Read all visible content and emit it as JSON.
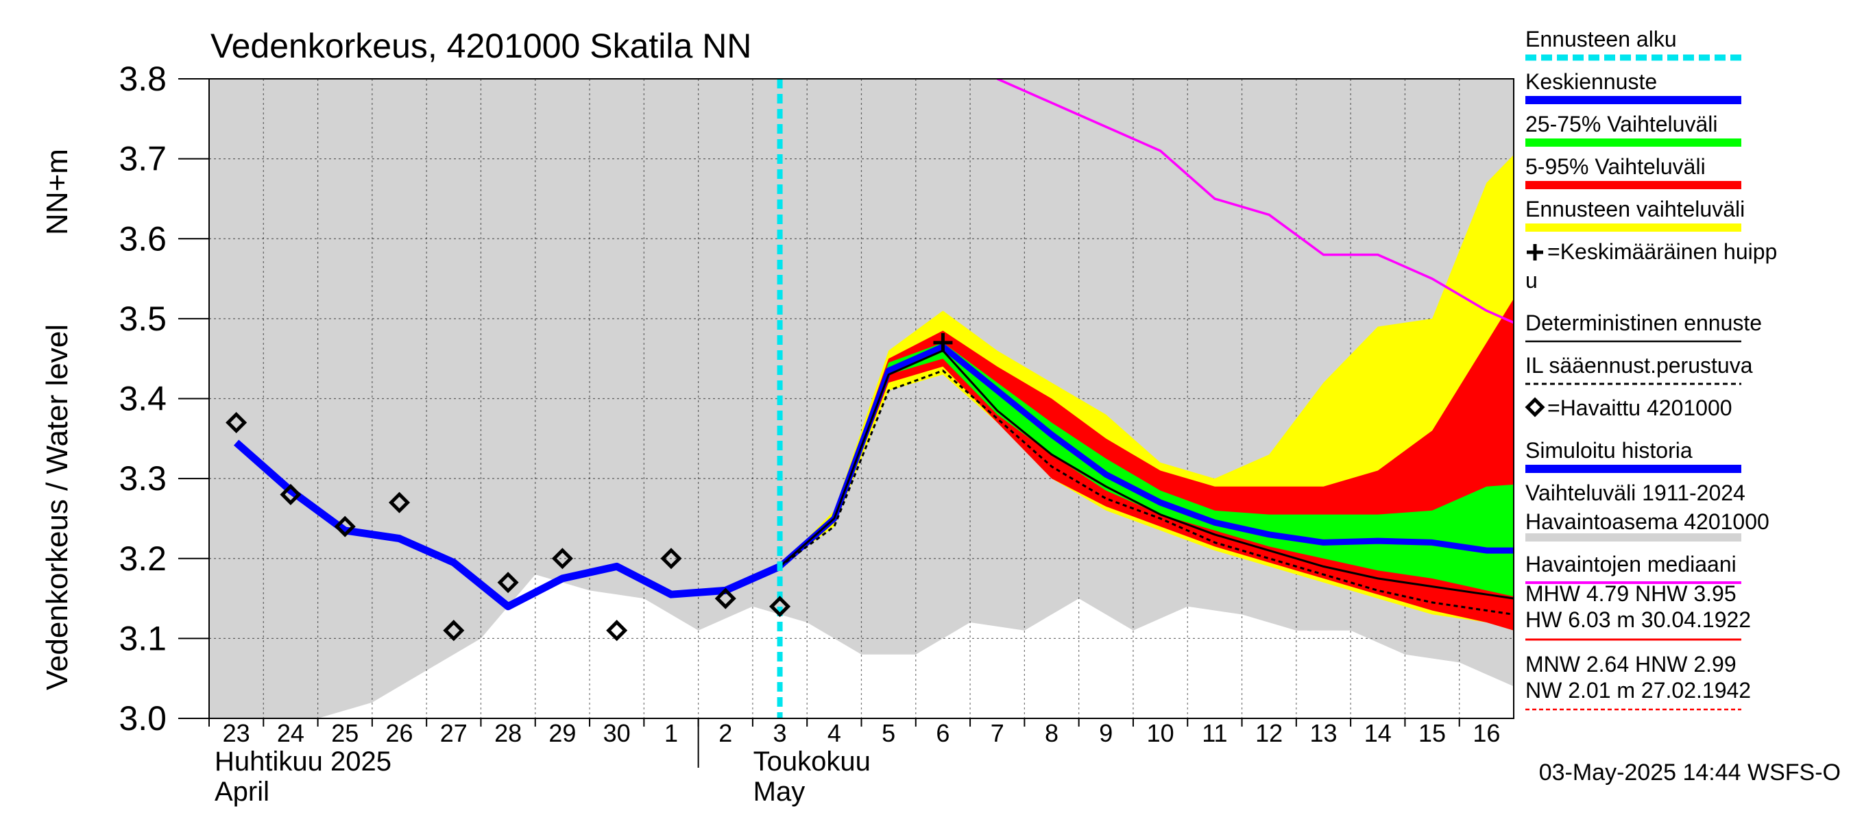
{
  "chart_data": {
    "type": "area",
    "title": "Vedenkorkeus, 4201000 Skatila NN",
    "ylabel": "Vedenkorkeus / Water level",
    "yunit": "NN+m",
    "ylim": [
      3.0,
      3.8
    ],
    "yticks": [
      "3.0",
      "3.1",
      "3.2",
      "3.3",
      "3.4",
      "3.5",
      "3.6",
      "3.7",
      "3.8"
    ],
    "x_start": "2025-04-23",
    "x_end": "2025-05-17",
    "xticks": [
      "23",
      "24",
      "25",
      "26",
      "27",
      "28",
      "29",
      "30",
      "1",
      "2",
      "3",
      "4",
      "5",
      "6",
      "7",
      "8",
      "9",
      "10",
      "11",
      "12",
      "13",
      "14",
      "15",
      "16"
    ],
    "month_labels": [
      {
        "fi": "Huhtikuu  2025",
        "en": "April",
        "start": "2025-04-23"
      },
      {
        "fi": "Toukokuu",
        "en": "May",
        "start": "2025-05-02"
      }
    ],
    "grid": true,
    "forecast_start": "2025-05-03",
    "history_range": {
      "x": [
        "2025-04-23",
        "2025-04-24",
        "2025-04-25",
        "2025-04-26",
        "2025-04-27",
        "2025-04-28",
        "2025-04-29",
        "2025-04-30",
        "2025-05-01",
        "2025-05-02",
        "2025-05-03",
        "2025-05-04",
        "2025-05-05",
        "2025-05-06",
        "2025-05-07",
        "2025-05-08",
        "2025-05-09",
        "2025-05-10",
        "2025-05-11",
        "2025-05-12",
        "2025-05-13",
        "2025-05-14",
        "2025-05-15",
        "2025-05-16",
        "2025-05-17"
      ],
      "low": [
        3.0,
        3.0,
        3.0,
        3.02,
        3.06,
        3.1,
        3.18,
        3.16,
        3.15,
        3.11,
        3.14,
        3.12,
        3.08,
        3.08,
        3.12,
        3.11,
        3.15,
        3.11,
        3.14,
        3.13,
        3.11,
        3.11,
        3.08,
        3.07,
        3.04
      ],
      "high": [
        3.8,
        3.8,
        3.8,
        3.8,
        3.8,
        3.8,
        3.8,
        3.8,
        3.8,
        3.8,
        3.8,
        3.8,
        3.8,
        3.8,
        3.8,
        3.8,
        3.8,
        3.8,
        3.8,
        3.8,
        3.8,
        3.8,
        3.8,
        3.8,
        3.8
      ]
    },
    "forecast_x": [
      "2025-05-03",
      "2025-05-04",
      "2025-05-05",
      "2025-05-06",
      "2025-05-07",
      "2025-05-08",
      "2025-05-09",
      "2025-05-10",
      "2025-05-11",
      "2025-05-12",
      "2025-05-13",
      "2025-05-14",
      "2025-05-15",
      "2025-05-16",
      "2025-05-17"
    ],
    "forecast_range": {
      "low": [
        3.19,
        3.24,
        3.41,
        3.43,
        3.37,
        3.3,
        3.26,
        3.235,
        3.21,
        3.19,
        3.17,
        3.15,
        3.13,
        3.12,
        3.1
      ],
      "high": [
        3.19,
        3.26,
        3.46,
        3.51,
        3.46,
        3.42,
        3.38,
        3.32,
        3.3,
        3.33,
        3.42,
        3.49,
        3.5,
        3.67,
        3.74
      ]
    },
    "band_5_95": {
      "low": [
        3.19,
        3.245,
        3.42,
        3.44,
        3.37,
        3.3,
        3.265,
        3.24,
        3.215,
        3.195,
        3.175,
        3.155,
        3.135,
        3.12,
        3.1
      ],
      "high": [
        3.19,
        3.255,
        3.45,
        3.485,
        3.44,
        3.4,
        3.35,
        3.31,
        3.29,
        3.29,
        3.29,
        3.31,
        3.36,
        3.47,
        3.58
      ]
    },
    "band_25_75": {
      "low": [
        3.19,
        3.248,
        3.43,
        3.45,
        3.38,
        3.33,
        3.285,
        3.255,
        3.235,
        3.215,
        3.2,
        3.185,
        3.175,
        3.16,
        3.145
      ],
      "high": [
        3.19,
        3.252,
        3.445,
        3.47,
        3.42,
        3.37,
        3.325,
        3.285,
        3.26,
        3.255,
        3.255,
        3.255,
        3.26,
        3.29,
        3.295
      ]
    },
    "series": [
      {
        "name": "Keskiennuste",
        "x_ref": "forecast_x",
        "values": [
          3.19,
          3.25,
          3.435,
          3.465,
          3.41,
          3.355,
          3.305,
          3.27,
          3.245,
          3.23,
          3.22,
          3.222,
          3.22,
          3.21,
          3.21
        ],
        "color": "#0000ff"
      },
      {
        "name": "Deterministinen ennuste",
        "x_ref": "forecast_x",
        "values": [
          3.19,
          3.25,
          3.43,
          3.46,
          3.385,
          3.33,
          3.29,
          3.255,
          3.23,
          3.21,
          3.19,
          3.175,
          3.165,
          3.155,
          3.145
        ],
        "color": "#000000"
      },
      {
        "name": "IL sääennust.perustuva",
        "x_ref": "forecast_x",
        "values": [
          3.19,
          3.24,
          3.41,
          3.435,
          3.375,
          3.315,
          3.275,
          3.25,
          3.22,
          3.2,
          3.18,
          3.16,
          3.145,
          3.135,
          3.125
        ],
        "color": "#000000",
        "dashed": true
      },
      {
        "name": "Simuloitu historia",
        "x": [
          "2025-04-23",
          "2025-04-24",
          "2025-04-25",
          "2025-04-26",
          "2025-04-27",
          "2025-04-28",
          "2025-04-29",
          "2025-04-30",
          "2025-05-01",
          "2025-05-02",
          "2025-05-03"
        ],
        "values": [
          3.345,
          3.285,
          3.235,
          3.225,
          3.195,
          3.14,
          3.175,
          3.19,
          3.155,
          3.16,
          3.19
        ],
        "color": "#0000ff"
      },
      {
        "name": "Havaintojen mediaani",
        "x": [
          "2025-05-07",
          "2025-05-08",
          "2025-05-09",
          "2025-05-10",
          "2025-05-11",
          "2025-05-12",
          "2025-05-13",
          "2025-05-14",
          "2025-05-15",
          "2025-05-16",
          "2025-05-17"
        ],
        "values": [
          3.8,
          3.77,
          3.74,
          3.71,
          3.65,
          3.63,
          3.58,
          3.58,
          3.55,
          3.51,
          3.48
        ],
        "color": "#ff00ff"
      }
    ],
    "observed": {
      "name": "Havaittu 4201000",
      "x": [
        "2025-04-23",
        "2025-04-24",
        "2025-04-25",
        "2025-04-26",
        "2025-04-27",
        "2025-04-28",
        "2025-04-29",
        "2025-04-30",
        "2025-05-01",
        "2025-05-02",
        "2025-05-03"
      ],
      "values": [
        3.37,
        3.28,
        3.24,
        3.27,
        3.11,
        3.17,
        3.2,
        3.11,
        3.2,
        3.15,
        3.14
      ]
    },
    "mean_peak": {
      "x": "2025-05-06",
      "value": 3.47
    },
    "legend": {
      "placement": "right",
      "items": [
        {
          "label": "Ennusteen alku",
          "color": "#00e5ee",
          "style": "dashed-thick"
        },
        {
          "label": "Keskiennuste",
          "color": "#0000ff",
          "style": "thick"
        },
        {
          "label": "25-75% Vaihteluväli",
          "color": "#00ff00",
          "style": "thick"
        },
        {
          "label": "5-95% Vaihteluväli",
          "color": "#ff0000",
          "style": "thick"
        },
        {
          "label": "Ennusteen vaihteluväli",
          "color": "#ffff00",
          "style": "thick"
        },
        {
          "label": "=Keskimääräinen huipp",
          "label2": "u",
          "color": "#000000",
          "style": "none",
          "symbol": "cross"
        },
        {
          "label": "Deterministinen ennuste",
          "color": "#000000",
          "style": "thin"
        },
        {
          "label": "IL sääennust.perustuva",
          "color": "#000000",
          "style": "dotted"
        },
        {
          "label": "=Havaittu 4201000",
          "color": "#000000",
          "style": "none",
          "symbol": "diamond"
        },
        {
          "label": "Simuloitu historia",
          "color": "#0000ff",
          "style": "thick"
        },
        {
          "label": "Vaihteluväli 1911-2024",
          "label2": " Havaintoasema 4201000",
          "color": "#d3d3d3",
          "style": "thick"
        },
        {
          "label": "Havaintojen mediaani",
          "color": "#ff00ff",
          "style": "medium"
        }
      ]
    },
    "stats": {
      "mhw_line": "MHW    4.79 NHW    3.95",
      "hw_line": "HW    6.03 m 30.04.1922",
      "mnw_line": "MNW    2.64 HNW    2.99",
      "nw_line": "NW    2.01 m 27.02.1942",
      "high_color": "#ff0000",
      "low_color": "#ff0000"
    },
    "footer": "03-May-2025 14:44 WSFS-O"
  }
}
